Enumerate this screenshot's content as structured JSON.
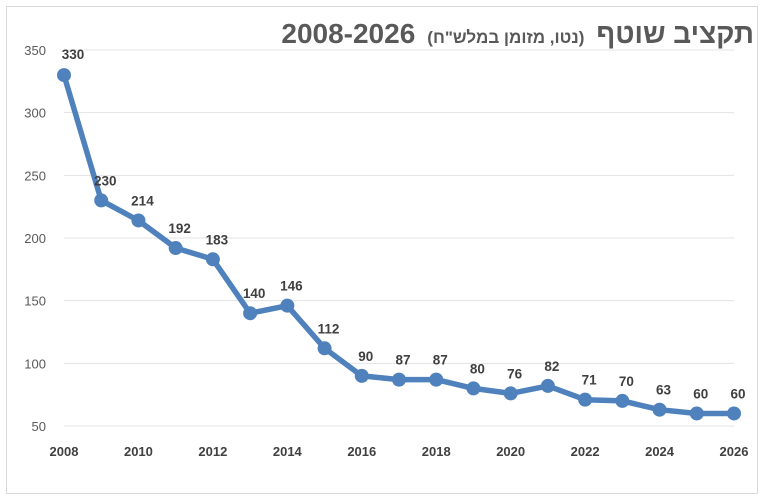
{
  "chart_data": {
    "type": "line",
    "title_main": "תקציב שוטף",
    "title_sub": "(נטו, מזומן במלש\"ח)",
    "title_years": "2008-2026",
    "xlabel": "",
    "ylabel": "",
    "x": [
      2008,
      2009,
      2010,
      2011,
      2012,
      2013,
      2014,
      2015,
      2016,
      2017,
      2018,
      2019,
      2020,
      2021,
      2022,
      2023,
      2024,
      2025,
      2026
    ],
    "values": [
      330,
      230,
      214,
      192,
      183,
      140,
      146,
      112,
      90,
      87,
      87,
      80,
      76,
      82,
      71,
      70,
      63,
      60,
      60
    ],
    "x_ticks": [
      2008,
      2010,
      2012,
      2014,
      2016,
      2018,
      2020,
      2022,
      2024,
      2026
    ],
    "y_ticks": [
      50,
      100,
      150,
      200,
      250,
      300,
      350
    ],
    "ylim": [
      50,
      350
    ],
    "xlim": [
      2008,
      2026
    ],
    "grid": "horizontal",
    "legend": "none",
    "series_color": "#4f81bd",
    "grid_color": "#e3e3e3"
  }
}
